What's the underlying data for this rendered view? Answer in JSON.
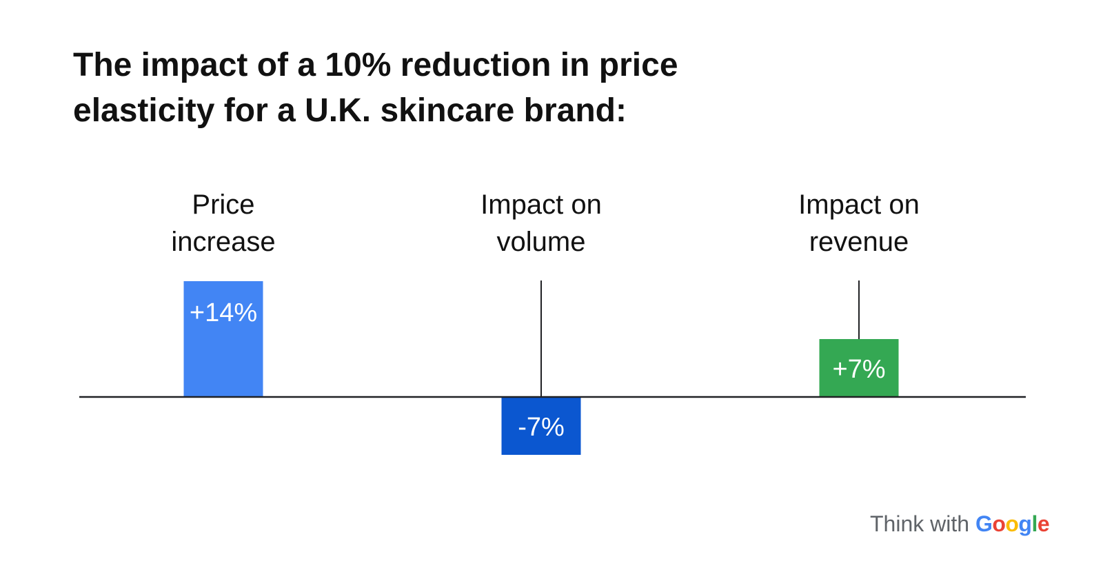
{
  "title_lines": [
    "The impact of a 10% reduction in price",
    "elasticity for a U.K. skincare brand:"
  ],
  "chart_data": {
    "type": "bar",
    "categories": [
      [
        "Price",
        "increase"
      ],
      [
        "Impact on",
        "volume"
      ],
      [
        "Impact on",
        "revenue"
      ]
    ],
    "values": [
      14,
      -7,
      7
    ],
    "data_labels": [
      "+14%",
      "-7%",
      "+7%"
    ],
    "unit": "%",
    "colors": [
      "#4285F4",
      "#0B57D0",
      "#34A853"
    ],
    "axis_color": "#202124",
    "label_color": "#ffffff",
    "grid": false,
    "legend": "none"
  },
  "branding": {
    "prefix": "Think with ",
    "brand_letters": [
      "G",
      "o",
      "o",
      "g",
      "l",
      "e"
    ],
    "brand_colors": [
      "#4285F4",
      "#EA4335",
      "#FBBC05",
      "#4285F4",
      "#34A853",
      "#EA4335"
    ]
  }
}
